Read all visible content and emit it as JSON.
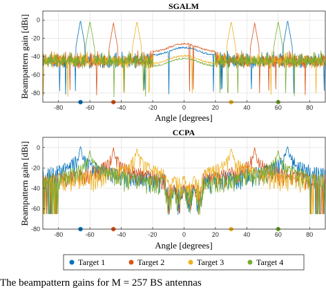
{
  "chart_data": [
    {
      "type": "line",
      "title": "SGALM",
      "xlabel": "Angle [degrees]",
      "ylabel": "Beampattern gain [dBi]",
      "xlim": [
        -90,
        90
      ],
      "ylim": [
        -90,
        10
      ],
      "xticks": [
        -80,
        -60,
        -40,
        -20,
        0,
        20,
        40,
        60,
        80
      ],
      "yticks": [
        0,
        -20,
        -40,
        -60,
        -80
      ],
      "grid": true,
      "floor_dB": -45,
      "series": [
        {
          "name": "Target 1",
          "peaks": [
            -66,
            66
          ],
          "peak_dB": 0,
          "center_dB": -33
        },
        {
          "name": "Target 2",
          "peaks": [
            -45,
            45
          ],
          "peak_dB": -3,
          "center_dB": -29
        },
        {
          "name": "Target 3",
          "peaks": [
            -30,
            30
          ],
          "peak_dB": -1,
          "center_dB": -42
        },
        {
          "name": "Target 4",
          "peaks": [
            -60,
            60
          ],
          "peak_dB": -1,
          "center_dB": -45
        }
      ],
      "target_markers": [
        -66,
        -45,
        30,
        60
      ]
    },
    {
      "type": "line",
      "title": "CCPA",
      "xlabel": "Angle [degrees]",
      "ylabel": "Beampattern gain [dBi]",
      "xlim": [
        -90,
        90
      ],
      "ylim": [
        -80,
        10
      ],
      "xticks": [
        -80,
        -60,
        -40,
        -20,
        0,
        20,
        40,
        60,
        80
      ],
      "yticks": [
        0,
        -20,
        -40,
        -60,
        -80
      ],
      "grid": true,
      "series": [
        {
          "name": "Target 1",
          "peaks": [
            -66,
            66
          ],
          "peak_dB": 2,
          "center_dB": -38
        },
        {
          "name": "Target 2",
          "peaks": [
            -45,
            45
          ],
          "peak_dB": 0,
          "center_dB": -36
        },
        {
          "name": "Target 3",
          "peaks": [
            -30,
            30
          ],
          "peak_dB": 0,
          "center_dB": -28
        },
        {
          "name": "Target 4",
          "peaks": [
            -60,
            60
          ],
          "peak_dB": -2,
          "center_dB": -40
        }
      ],
      "target_markers": [
        -66,
        -45,
        30,
        60
      ]
    }
  ],
  "legend": {
    "placement": "bottom-center",
    "entries": [
      "Target 1",
      "Target 2",
      "Target 3",
      "Target 4"
    ]
  },
  "colors": [
    "#0072BD",
    "#D95319",
    "#EDB120",
    "#77AC30"
  ],
  "caption": "The beampattern gains for M = 257 BS antennas"
}
